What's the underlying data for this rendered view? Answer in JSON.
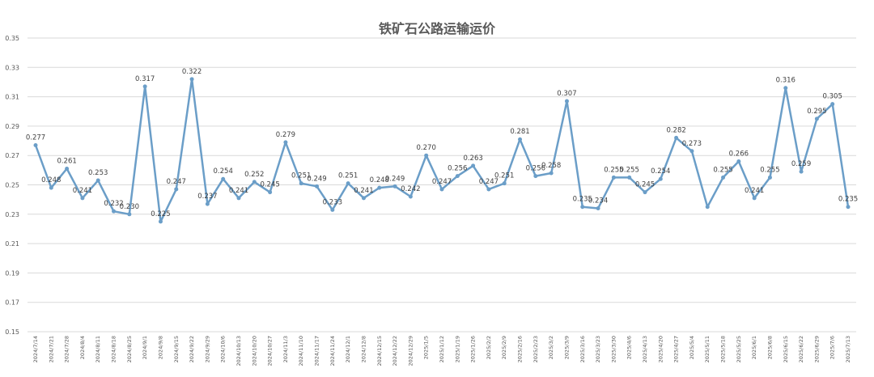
{
  "chart_data": {
    "type": "line",
    "title": "铁矿石公路运输运价",
    "xlabel": "",
    "ylabel": "",
    "ylim": [
      0.15,
      0.35
    ],
    "yticks": [
      "0.35",
      "0.33",
      "0.31",
      "0.29",
      "0.27",
      "0.25",
      "0.23",
      "0.21",
      "0.19",
      "0.17",
      "0.15"
    ],
    "grid": true,
    "legend": "none",
    "line_color": "#6b9ec8",
    "categories": [
      "2024/7/14",
      "2024/7/21",
      "2024/7/28",
      "2024/8/4",
      "2024/8/11",
      "2024/8/18",
      "2024/8/25",
      "2024/9/1",
      "2024/9/8",
      "2024/9/15",
      "2024/9/22",
      "2024/9/29",
      "2024/10/6",
      "2024/10/13",
      "2024/10/20",
      "2024/10/27",
      "2024/11/3",
      "2024/11/10",
      "2024/11/17",
      "2024/11/24",
      "2024/12/1",
      "2024/12/8",
      "2024/12/15",
      "2024/12/22",
      "2024/12/29",
      "2025/1/5",
      "2025/1/12",
      "2025/1/19",
      "2025/1/26",
      "2025/2/2",
      "2025/2/9",
      "2025/2/16",
      "2025/2/23",
      "2025/3/2",
      "2025/3/9",
      "2025/3/16",
      "2025/3/23",
      "2025/3/30",
      "2025/4/6",
      "2025/4/13",
      "2025/4/20",
      "2025/4/27",
      "2025/5/4",
      "2025/5/11",
      "2025/5/18",
      "2025/5/25",
      "2025/6/1",
      "2025/6/8",
      "2025/6/15",
      "2025/6/22",
      "2025/6/29",
      "2025/7/6",
      "2025/7/13"
    ],
    "values": [
      0.277,
      0.248,
      0.261,
      0.241,
      0.253,
      0.232,
      0.23,
      0.317,
      0.225,
      0.247,
      0.322,
      0.237,
      0.254,
      0.241,
      0.252,
      0.245,
      0.279,
      0.251,
      0.249,
      0.233,
      0.251,
      0.241,
      0.248,
      0.249,
      0.242,
      0.27,
      0.247,
      0.256,
      0.263,
      0.247,
      0.251,
      0.281,
      0.256,
      0.258,
      0.307,
      0.235,
      0.234,
      0.255,
      0.255,
      0.245,
      0.254,
      0.282,
      0.273,
      0.235,
      0.255,
      0.266,
      0.241,
      0.255,
      0.316,
      0.259,
      0.295,
      0.305,
      0.235
    ],
    "data_labels": [
      "0.277",
      "0.248",
      "0.261",
      "0.241",
      "0.253",
      "0.232",
      "0.230",
      "0.317",
      "0.225",
      "0.247",
      "0.322",
      "0.237",
      "0.254",
      "0.241",
      "0.252",
      "0.245",
      "0.279",
      "0.251",
      "0.249",
      "0.233",
      "0.251",
      "0.241",
      "0.248",
      "0.249",
      "0.242",
      "0.270",
      "0.247",
      "0.256",
      "0.263",
      "0.247",
      "0.251",
      "0.281",
      "0.256",
      "0.258",
      "0.307",
      "0.235",
      "0.234",
      "0.255",
      "0.255",
      "0.245",
      "0.254",
      "0.282",
      "0.273",
      "",
      "0.255",
      "0.266",
      "0.241",
      "0.255",
      "0.316",
      "0.259",
      "0.295",
      "0.305",
      "0.235"
    ]
  }
}
